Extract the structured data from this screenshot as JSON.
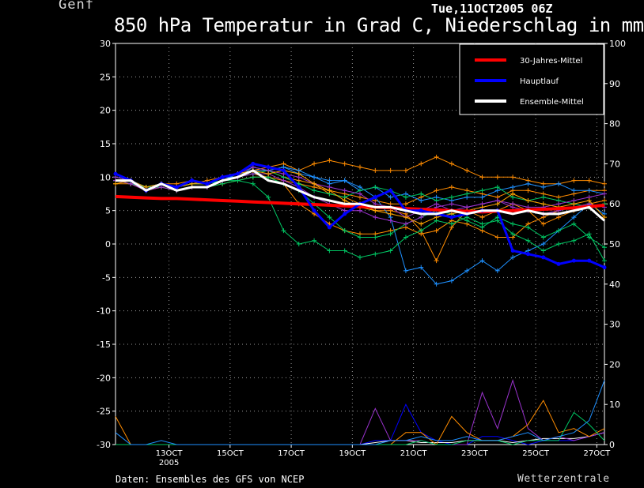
{
  "header": {
    "location": "Genf",
    "datestamp": "Tue,11OCT2005 06Z",
    "title": "850 hPa Temperatur in Grad C, Niederschlag in mm"
  },
  "footer": {
    "source": "Daten: Ensembles des GFS von NCEP",
    "brand": "Wetterzentrale"
  },
  "chart_data": {
    "type": "line",
    "title": "850 hPa Temperatur in Grad C, Niederschlag in mm",
    "y_left": {
      "range": [
        -30,
        30
      ],
      "ticks": [
        30,
        25,
        20,
        15,
        10,
        5,
        0,
        -5,
        -10,
        -15,
        -20,
        -25,
        -30
      ]
    },
    "y_right": {
      "range": [
        0,
        100
      ],
      "ticks": [
        100,
        90,
        80,
        70,
        60,
        50,
        40,
        30,
        20,
        10,
        0
      ]
    },
    "x_ticks": [
      {
        "label": "13OCT",
        "sub": "2005",
        "day": 13
      },
      {
        "label": "15OCT",
        "sub": "",
        "day": 15
      },
      {
        "label": "17OCT",
        "sub": "",
        "day": 17
      },
      {
        "label": "19OCT",
        "sub": "",
        "day": 19
      },
      {
        "label": "21OCT",
        "sub": "",
        "day": 21
      },
      {
        "label": "23OCT",
        "sub": "",
        "day": 23
      },
      {
        "label": "25OCT",
        "sub": "",
        "day": 25
      },
      {
        "label": "27OCT",
        "sub": "",
        "day": 27
      }
    ],
    "x_range_days": [
      11.25,
      27.25
    ],
    "grid": true,
    "legend_position": "top-right",
    "legend": [
      {
        "name": "30-Jahres-Mittel",
        "color": "#ff0000"
      },
      {
        "name": "Hauptlauf",
        "color": "#0000ff"
      },
      {
        "name": "Ensemble-Mittel",
        "color": "#ffffff"
      }
    ],
    "time_days": [
      11.25,
      11.75,
      12.25,
      12.75,
      13.25,
      13.75,
      14.25,
      14.75,
      15.25,
      15.75,
      16.25,
      16.75,
      17.25,
      17.75,
      18.25,
      18.75,
      19.25,
      19.75,
      20.25,
      20.75,
      21.25,
      21.75,
      22.25,
      22.75,
      23.25,
      23.75,
      24.25,
      24.75,
      25.25,
      25.75,
      26.25,
      26.75,
      27.25
    ],
    "series": [
      {
        "name": "30-Jahres-Mittel",
        "color": "#ff0000",
        "values": [
          7.1,
          7.0,
          6.9,
          6.8,
          6.8,
          6.7,
          6.6,
          6.5,
          6.4,
          6.3,
          6.2,
          6.1,
          6.0,
          5.9,
          5.8,
          5.7,
          5.6,
          5.5,
          5.4,
          5.3,
          5.2,
          5.1,
          5.0,
          4.9,
          4.8,
          4.9,
          5.0,
          5.1,
          5.2,
          5.3,
          5.4,
          5.6,
          5.8
        ]
      },
      {
        "name": "Hauptlauf",
        "color": "#0000ff",
        "values": [
          10.5,
          9.5,
          8.0,
          9.0,
          8.5,
          9.5,
          9.0,
          10.0,
          10.5,
          12.0,
          11.5,
          11.0,
          8.5,
          5.0,
          2.5,
          4.5,
          6.0,
          7.0,
          8.0,
          5.0,
          5.0,
          4.5,
          4.0,
          4.5,
          5.0,
          5.0,
          -1.0,
          -1.5,
          -2.0,
          -3.0,
          -2.5,
          -2.5,
          -3.5
        ]
      },
      {
        "name": "Ensemble-Mittel",
        "color": "#ffffff",
        "values": [
          9.5,
          9.5,
          8.0,
          9.0,
          8.0,
          8.5,
          8.5,
          9.5,
          10.0,
          11.0,
          9.5,
          9.0,
          8.0,
          7.0,
          6.5,
          6.0,
          6.0,
          5.5,
          5.5,
          5.0,
          4.5,
          4.5,
          5.0,
          4.5,
          5.0,
          5.0,
          4.5,
          5.0,
          4.5,
          4.5,
          5.0,
          5.5,
          3.5
        ]
      },
      {
        "name": "",
        "color": "#ff8c00",
        "values": [
          9.5,
          9.0,
          8.5,
          9.0,
          9.0,
          9.5,
          9.0,
          10.0,
          10.5,
          11.0,
          11.5,
          12.0,
          11.0,
          12.0,
          12.5,
          12.0,
          11.5,
          11.0,
          11.0,
          11.0,
          12.0,
          13.0,
          12.0,
          11.0,
          10.0,
          10.0,
          10.0,
          9.5,
          9.0,
          9.0,
          9.5,
          9.5,
          9.0
        ]
      },
      {
        "name": "",
        "color": "#ff8c00",
        "values": [
          9.0,
          9.0,
          8.0,
          8.5,
          8.0,
          8.5,
          8.5,
          9.0,
          9.5,
          10.0,
          10.0,
          9.5,
          9.0,
          8.5,
          8.0,
          7.5,
          7.0,
          6.5,
          6.0,
          6.0,
          7.0,
          8.0,
          8.5,
          8.0,
          7.5,
          7.0,
          8.0,
          8.0,
          7.5,
          7.0,
          7.5,
          8.0,
          8.0
        ]
      },
      {
        "name": "",
        "color": "#ff8c00",
        "values": [
          9.5,
          9.0,
          8.0,
          8.5,
          8.0,
          8.5,
          8.5,
          9.5,
          10.0,
          10.5,
          10.0,
          9.0,
          6.0,
          4.5,
          3.0,
          2.0,
          1.5,
          1.5,
          2.0,
          2.5,
          1.5,
          2.0,
          3.5,
          3.0,
          2.0,
          1.0,
          1.0,
          3.0,
          4.0,
          5.0,
          5.5,
          6.0,
          6.5
        ]
      },
      {
        "name": "",
        "color": "#ff8c00",
        "values": [
          10.0,
          9.5,
          8.5,
          9.0,
          8.5,
          9.0,
          9.5,
          10.0,
          10.0,
          11.0,
          11.0,
          10.0,
          9.5,
          9.0,
          7.5,
          7.0,
          6.0,
          5.0,
          5.0,
          4.5,
          2.0,
          -2.5,
          2.5,
          5.0,
          4.0,
          5.0,
          6.0,
          5.0,
          3.0,
          4.0,
          5.0,
          5.5,
          6.0
        ]
      },
      {
        "name": "",
        "color": "#1e90ff",
        "values": [
          10.0,
          9.5,
          8.0,
          9.0,
          8.5,
          9.5,
          9.0,
          10.0,
          10.0,
          11.5,
          11.0,
          11.5,
          11.0,
          10.0,
          9.0,
          9.5,
          8.5,
          7.0,
          4.0,
          -4.0,
          -3.5,
          -6.0,
          -5.5,
          -4.0,
          -2.5,
          -4.0,
          -2.0,
          -1.0,
          0.0,
          2.0,
          4.0,
          6.0,
          4.5
        ]
      },
      {
        "name": "",
        "color": "#1e90ff",
        "values": [
          9.5,
          9.5,
          8.5,
          9.0,
          8.5,
          9.0,
          9.0,
          9.5,
          10.5,
          11.0,
          11.0,
          11.5,
          10.5,
          10.0,
          9.5,
          9.5,
          8.0,
          8.5,
          7.0,
          7.5,
          6.5,
          7.0,
          6.5,
          7.0,
          7.0,
          8.0,
          8.5,
          9.0,
          8.5,
          9.0,
          8.0,
          8.0,
          7.5
        ]
      },
      {
        "name": "",
        "color": "#00c864",
        "values": [
          9.5,
          9.5,
          8.5,
          9.0,
          8.5,
          9.0,
          9.0,
          9.5,
          9.5,
          9.0,
          7.0,
          2.0,
          0.0,
          0.5,
          -1.0,
          -1.0,
          -2.0,
          -1.5,
          -1.0,
          1.0,
          2.0,
          3.5,
          3.0,
          4.0,
          3.0,
          3.5,
          1.5,
          0.5,
          -1.0,
          0.0,
          0.5,
          1.5,
          -2.5
        ]
      },
      {
        "name": "",
        "color": "#00c864",
        "values": [
          10.0,
          9.5,
          8.0,
          9.0,
          8.5,
          9.0,
          9.0,
          9.5,
          10.0,
          10.5,
          11.0,
          10.0,
          9.0,
          8.0,
          7.5,
          7.0,
          8.0,
          8.5,
          8.0,
          7.0,
          7.5,
          6.5,
          7.0,
          7.5,
          8.0,
          8.5,
          7.0,
          6.5,
          7.0,
          6.5,
          6.0,
          5.5,
          6.0
        ]
      },
      {
        "name": "",
        "color": "#00c864",
        "values": [
          9.5,
          9.0,
          8.5,
          8.5,
          8.0,
          8.5,
          8.5,
          9.0,
          9.5,
          10.0,
          10.0,
          9.0,
          8.0,
          6.0,
          4.0,
          2.0,
          1.0,
          1.0,
          1.5,
          3.0,
          4.0,
          5.0,
          4.5,
          3.5,
          2.5,
          4.0,
          3.0,
          2.5,
          1.0,
          2.0,
          3.0,
          1.0,
          -0.5
        ]
      },
      {
        "name": "",
        "color": "#9932cc",
        "values": [
          9.5,
          9.0,
          8.0,
          8.5,
          8.0,
          8.5,
          8.5,
          9.5,
          10.0,
          10.5,
          10.5,
          9.5,
          8.5,
          7.0,
          6.0,
          5.0,
          5.0,
          4.0,
          3.5,
          3.0,
          4.0,
          5.5,
          6.0,
          5.5,
          6.0,
          6.5,
          6.0,
          5.5,
          5.5,
          6.0,
          6.5,
          7.0,
          7.5
        ]
      },
      {
        "name": "",
        "color": "#9932cc",
        "values": [
          10.0,
          9.5,
          8.0,
          9.0,
          8.5,
          9.5,
          9.0,
          10.0,
          10.5,
          11.5,
          11.0,
          10.5,
          10.0,
          9.0,
          8.5,
          8.0,
          7.5,
          6.0,
          5.5,
          4.0,
          5.0,
          6.0,
          5.0,
          5.5,
          6.0,
          6.5,
          5.5,
          5.0,
          4.5,
          5.0,
          5.5,
          6.0,
          5.5
        ]
      },
      {
        "name": "",
        "color": "#ffa500",
        "values": [
          9.0,
          9.5,
          8.5,
          9.0,
          8.5,
          9.0,
          9.0,
          10.0,
          10.5,
          11.0,
          10.5,
          11.0,
          10.5,
          9.0,
          8.0,
          6.5,
          5.5,
          5.0,
          4.5,
          4.0,
          3.0,
          4.0,
          4.5,
          5.0,
          5.5,
          6.0,
          7.5,
          6.5,
          6.0,
          5.5,
          6.0,
          6.5,
          4.0
        ]
      }
    ],
    "precip_series": [
      {
        "name": "",
        "color": "#0000ff",
        "values": [
          0,
          0,
          0,
          0,
          0,
          0,
          0,
          0,
          0,
          0,
          0,
          0,
          0,
          0,
          0,
          0,
          0,
          1,
          1,
          10,
          3,
          1,
          0,
          0,
          2,
          2,
          1,
          0,
          1,
          1,
          1,
          2,
          3
        ]
      },
      {
        "name": "",
        "color": "#ffffff",
        "values": [
          0,
          0,
          0,
          0,
          0,
          0,
          0,
          0,
          0,
          0,
          0,
          0,
          0,
          0,
          0,
          0,
          0,
          0.5,
          1,
          1,
          0.5,
          0.5,
          0.5,
          1,
          1,
          1,
          0.5,
          1,
          1.5,
          1.5,
          1.5,
          2,
          3
        ]
      },
      {
        "name": "",
        "color": "#9932cc",
        "values": [
          0,
          0,
          0,
          0,
          0,
          0,
          0,
          0,
          0,
          0,
          0,
          0,
          0,
          0,
          0,
          0,
          0,
          9,
          1,
          1,
          1,
          0,
          0,
          0,
          13,
          4,
          16,
          4,
          1,
          2,
          1,
          2,
          3
        ]
      },
      {
        "name": "",
        "color": "#ff8c00",
        "values": [
          7,
          0,
          0,
          0,
          0,
          0,
          0,
          0,
          0,
          0,
          0,
          0,
          0,
          0,
          0,
          0,
          0,
          0,
          0,
          3,
          3,
          0,
          7,
          3,
          1,
          1,
          2,
          5,
          11,
          3,
          4,
          2,
          4
        ]
      },
      {
        "name": "",
        "color": "#00c864",
        "values": [
          0,
          0,
          0,
          0,
          0,
          0,
          0,
          0,
          0,
          0,
          0,
          0,
          0,
          0,
          0,
          0,
          0,
          0,
          0,
          0,
          1,
          0,
          0,
          1,
          1,
          1,
          0,
          1,
          1,
          1,
          8,
          5,
          1
        ]
      },
      {
        "name": "",
        "color": "#1e90ff",
        "values": [
          3,
          0,
          0,
          1,
          0,
          0,
          0,
          0,
          0,
          0,
          0,
          0,
          0,
          0,
          0,
          0,
          0,
          0,
          1,
          1,
          2,
          1,
          1,
          2,
          1,
          1,
          2,
          3,
          1,
          2,
          3,
          6,
          16
        ]
      }
    ]
  }
}
